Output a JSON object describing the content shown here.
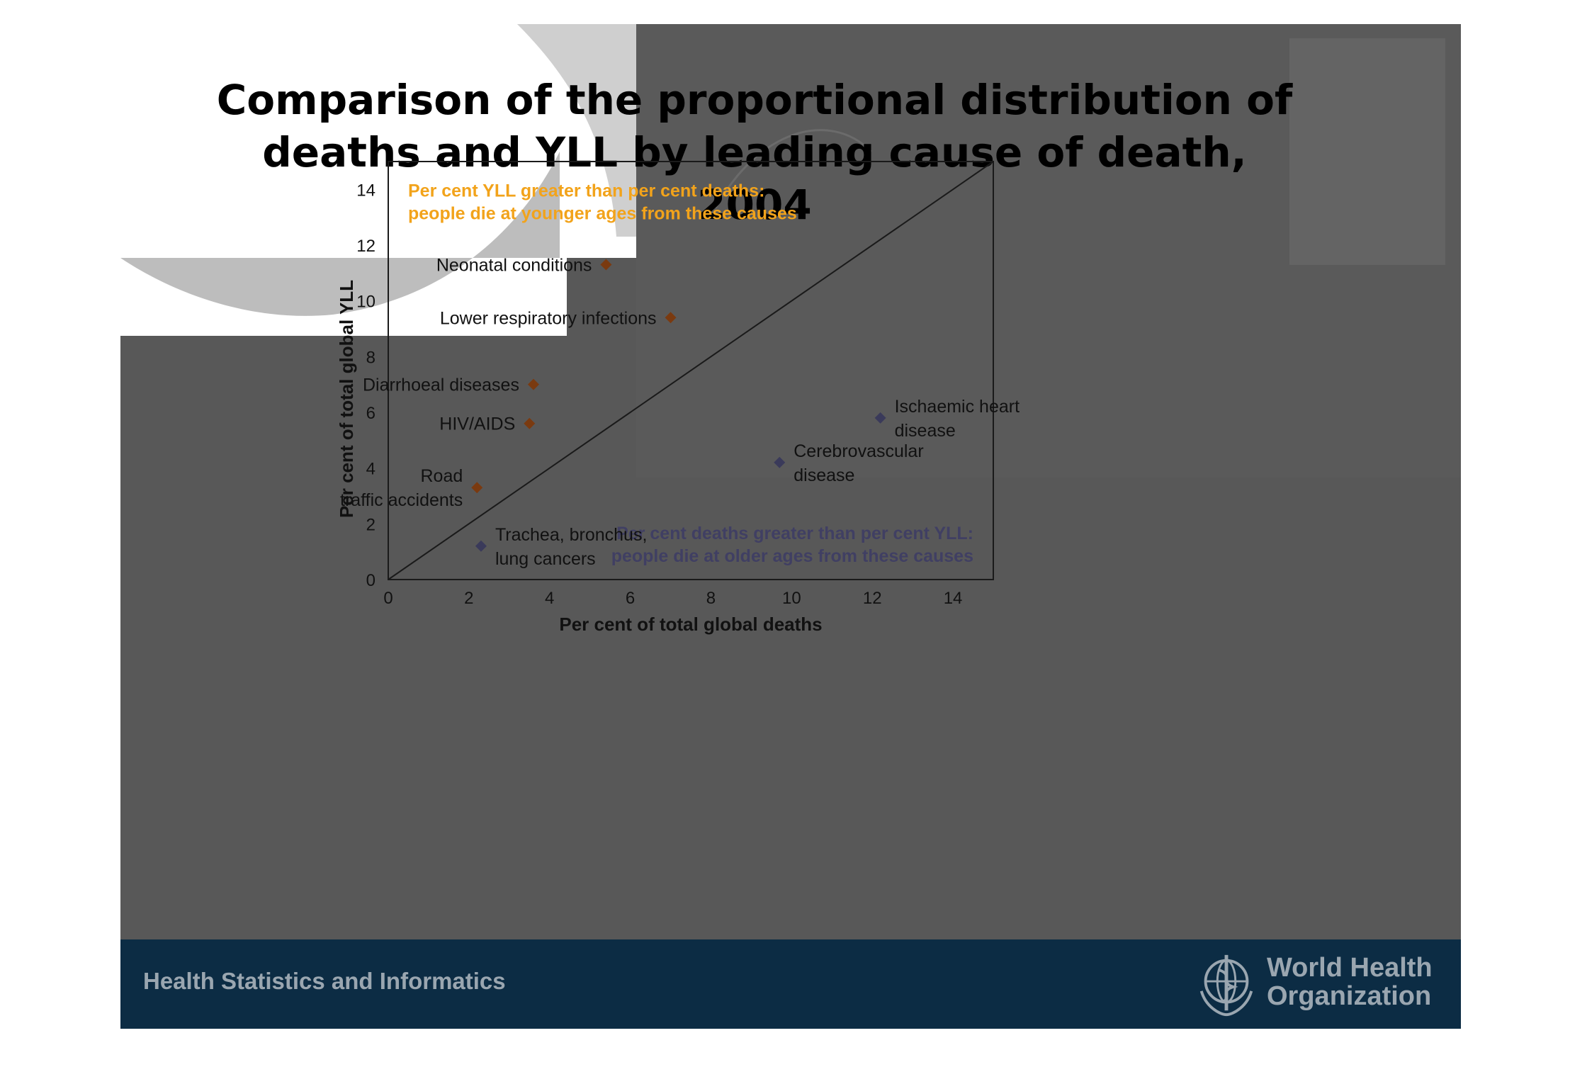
{
  "slide": {
    "title_line1": "Comparison of the proportional distribution of",
    "title_line2": "deaths and YLL by leading cause of death, 2004",
    "footer_text": "Health Statistics and Informatics",
    "org_name_line1": "World Health",
    "org_name_line2": "Organization",
    "org_logo_icon": "who-emblem-icon"
  },
  "colors": {
    "slide_background": "#585858",
    "footer_background": "#0c2c44",
    "younger_marker": "#7a3a10",
    "older_marker": "#3a3a5a",
    "younger_note": "#f2a31b",
    "older_note": "#403f63"
  },
  "chart_data": {
    "type": "scatter",
    "xlabel": "Per cent of total global deaths",
    "ylabel": "Per cent of total global YLL",
    "xlim": [
      0,
      15
    ],
    "ylim": [
      0,
      15
    ],
    "x_ticks": [
      0,
      2,
      4,
      6,
      8,
      10,
      12,
      14
    ],
    "y_ticks": [
      0,
      2,
      4,
      6,
      8,
      10,
      12,
      14
    ],
    "grid": false,
    "reference_line": {
      "from": [
        0,
        0
      ],
      "to": [
        15,
        15
      ]
    },
    "annotations": [
      {
        "lines": [
          "Per cent YLL greater than per cent deaths:",
          "people die at younger ages from these causes"
        ],
        "group": "younger",
        "position": "top-left"
      },
      {
        "lines": [
          "Per cent deaths greater than per cent YLL:",
          "people die at older ages from these causes"
        ],
        "group": "older",
        "position": "bottom-right"
      }
    ],
    "points": [
      {
        "label_lines": [
          "Neonatal conditions"
        ],
        "x": 5.4,
        "y": 11.3,
        "group": "younger"
      },
      {
        "label_lines": [
          "Lower respiratory infections"
        ],
        "x": 7.0,
        "y": 9.4,
        "group": "younger"
      },
      {
        "label_lines": [
          "Diarrhoeal diseases"
        ],
        "x": 3.6,
        "y": 7.0,
        "group": "younger"
      },
      {
        "label_lines": [
          "HIV/AIDS"
        ],
        "x": 3.5,
        "y": 5.6,
        "group": "younger"
      },
      {
        "label_lines": [
          "Road",
          "traffic accidents"
        ],
        "x": 2.2,
        "y": 3.3,
        "group": "younger"
      },
      {
        "label_lines": [
          "Ischaemic heart",
          "disease"
        ],
        "x": 12.2,
        "y": 5.8,
        "group": "older"
      },
      {
        "label_lines": [
          "Cerebrovascular",
          "disease"
        ],
        "x": 9.7,
        "y": 4.2,
        "group": "older"
      },
      {
        "label_lines": [
          "Trachea, bronchus,",
          "lung cancers"
        ],
        "x": 2.3,
        "y": 1.2,
        "group": "older"
      }
    ]
  }
}
